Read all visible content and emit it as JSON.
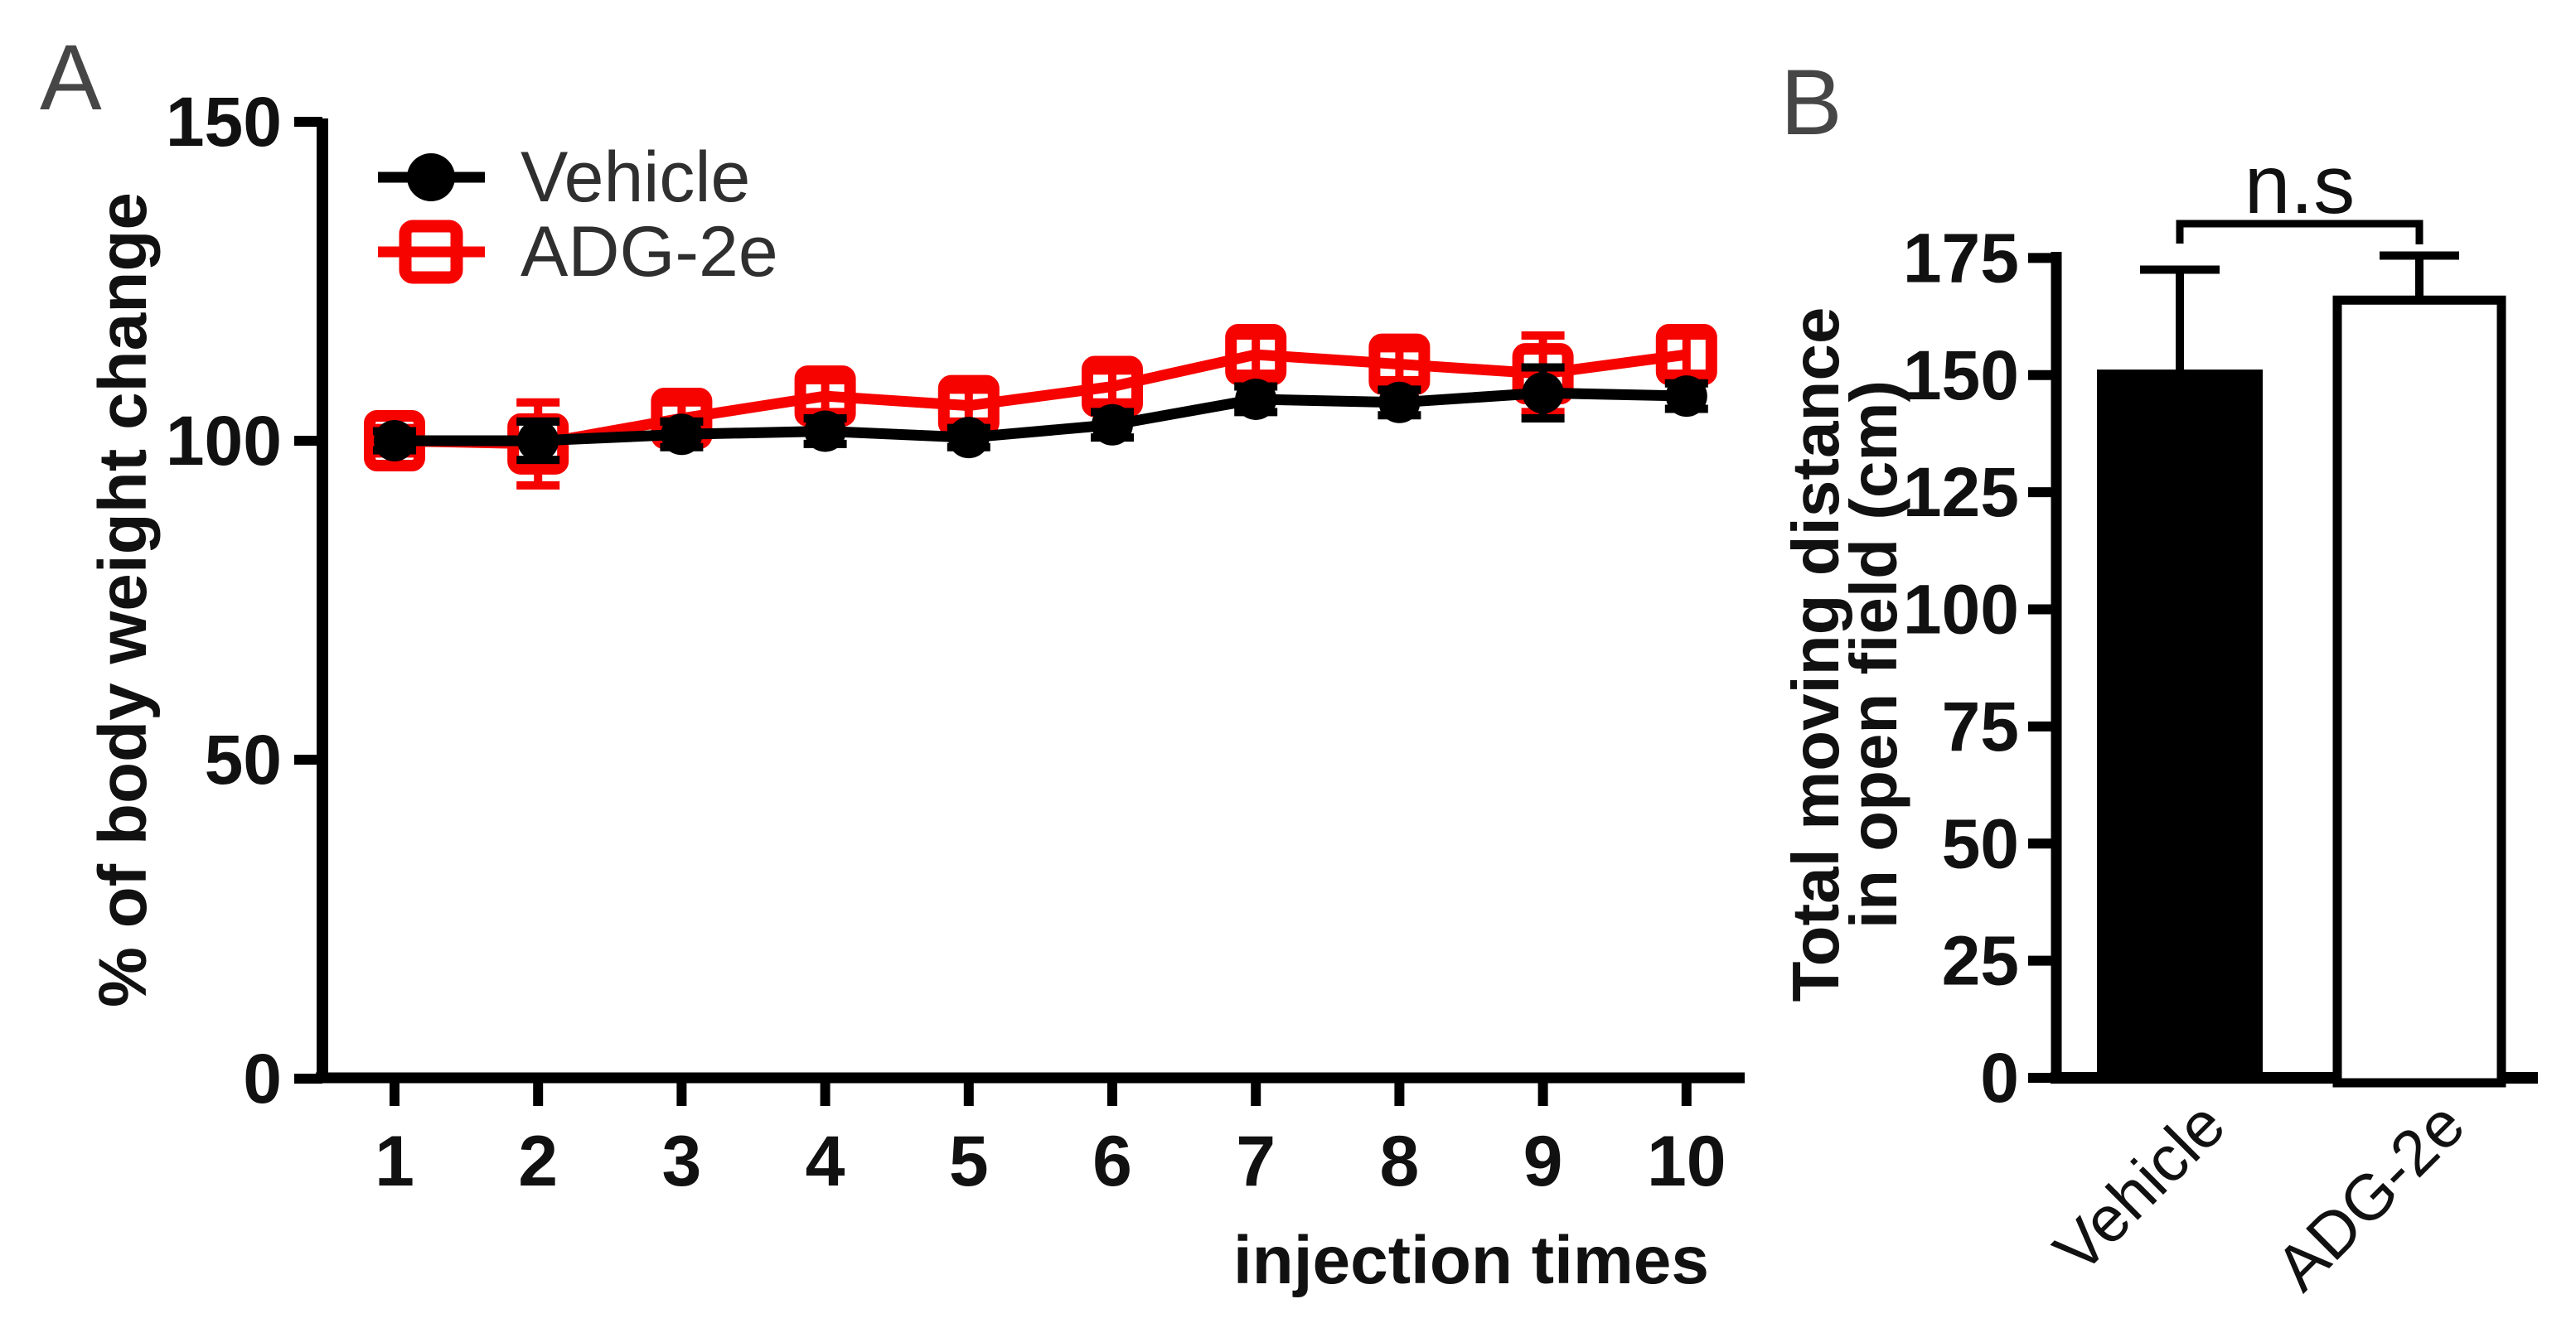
{
  "figure_background": "#ffffff",
  "chart_data": [
    {
      "panel_letter": "A",
      "type": "line",
      "title": "",
      "xlabel": "injection times",
      "ylabel": "% of body weight change",
      "x": [
        1,
        2,
        3,
        4,
        5,
        6,
        7,
        8,
        9,
        10
      ],
      "xtick_labels": [
        "1",
        "2",
        "3",
        "4",
        "5",
        "6",
        "7",
        "8",
        "9",
        "10"
      ],
      "yticks": [
        0,
        50,
        100,
        150
      ],
      "ylim": [
        0,
        150
      ],
      "grid": false,
      "legend_position": "top-left-inside",
      "series": [
        {
          "name": "Vehicle",
          "color": "#000000",
          "marker": "filled-circle",
          "values": [
            100,
            100,
            101,
            101.5,
            100.5,
            102.5,
            106.5,
            106,
            107.5,
            107
          ],
          "errors": [
            1.5,
            3,
            2,
            2,
            1.5,
            2,
            2,
            2,
            4,
            2
          ]
        },
        {
          "name": "ADG-2e",
          "color": "#f60300",
          "marker": "open-square",
          "values": [
            100,
            99.5,
            103.5,
            107,
            105.5,
            108.5,
            113.5,
            112,
            110.5,
            113.5
          ],
          "errors": [
            2,
            6.5,
            2.5,
            2.5,
            2.5,
            2.5,
            3,
            2.5,
            6,
            3
          ]
        }
      ]
    },
    {
      "panel_letter": "B",
      "type": "bar",
      "title": "",
      "ylabel_lines": [
        "Total moving distance",
        "in open field (cm)"
      ],
      "yticks": [
        0,
        25,
        50,
        75,
        100,
        125,
        150,
        175
      ],
      "ylim": [
        0,
        175
      ],
      "grid": false,
      "categories": [
        "Vehicle",
        "ADG-2e"
      ],
      "values": [
        151,
        166
      ],
      "errors": [
        21.5,
        9.5
      ],
      "bars": [
        {
          "fill": "#000000",
          "stroke": "#000000"
        },
        {
          "fill": "#ffffff",
          "stroke": "#000000"
        }
      ],
      "significance": {
        "label": "n.s",
        "between": [
          "Vehicle",
          "ADG-2e"
        ]
      }
    }
  ],
  "colors": {
    "vehicle_series": "#000000",
    "adg_2e_series": "#f60300",
    "axis": "#000000",
    "panel_letter": "#464646",
    "legend_text": "#2f2f2f",
    "tick_text": "#111111"
  }
}
